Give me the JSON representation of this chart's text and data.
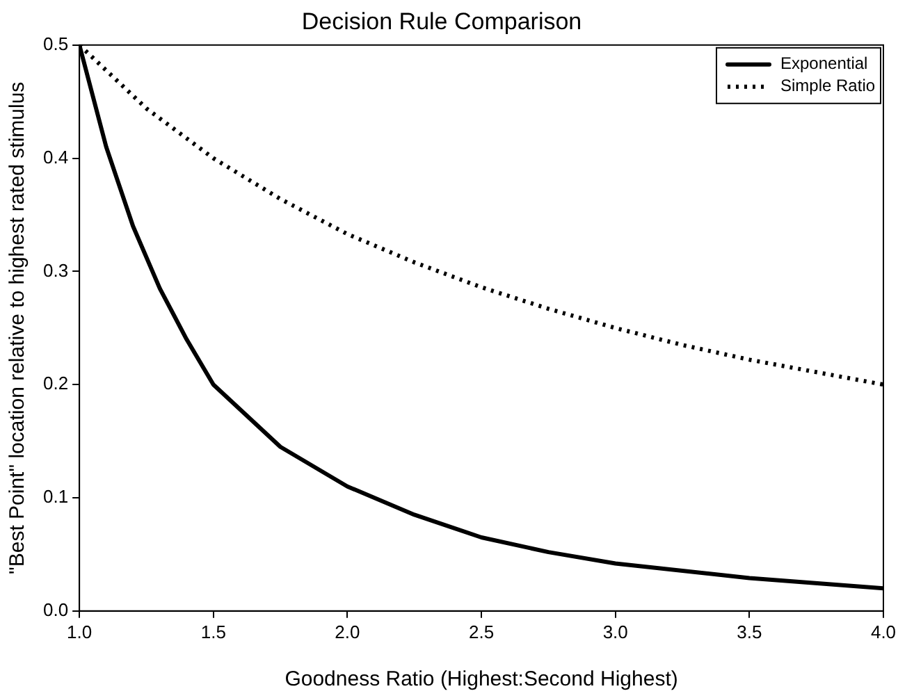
{
  "chart_data": {
    "type": "line",
    "title": "Decision Rule Comparison",
    "xlabel": "Goodness Ratio (Highest:Second Highest)",
    "ylabel": "\"Best Point\" location relative to highest rated stimulus",
    "xlim": [
      1,
      4
    ],
    "xticks": [
      {
        "value": 1,
        "label": "1.0"
      },
      {
        "value": 1.5,
        "label": "1.5"
      },
      {
        "value": 2,
        "label": "2.0"
      },
      {
        "value": 2.5,
        "label": "2.5"
      },
      {
        "value": 3,
        "label": "3.0"
      },
      {
        "value": 3.5,
        "label": "3.5"
      },
      {
        "value": 4,
        "label": "4.0"
      }
    ],
    "ylim": [
      0,
      0.5
    ],
    "yticks": [
      {
        "value": 0,
        "label": "0.0"
      },
      0.1,
      0.2,
      0.3,
      0.4,
      0.5
    ],
    "grid": false,
    "legend": "top right",
    "marker": "none",
    "series": [
      {
        "name": "Exponential",
        "color": "#000000",
        "line_style": "solid",
        "x": [
          1,
          1.1,
          1.2,
          1.3,
          1.4,
          1.5,
          1.75,
          2,
          2.25,
          2.5,
          2.75,
          3,
          3.5,
          4
        ],
        "values": [
          0.5,
          0.41,
          0.34,
          0.285,
          0.24,
          0.2,
          0.145,
          0.11,
          0.085,
          0.065,
          0.052,
          0.042,
          0.029,
          0.02
        ]
      },
      {
        "name": "Simple Ratio",
        "color": "#000000",
        "line_style": "dotted",
        "x": [
          1,
          1.25,
          1.5,
          1.75,
          2,
          2.25,
          2.5,
          2.75,
          3,
          3.25,
          3.5,
          3.75,
          4
        ],
        "values": [
          0.5,
          0.444,
          0.4,
          0.364,
          0.333,
          0.308,
          0.286,
          0.267,
          0.25,
          0.235,
          0.222,
          0.211,
          0.2
        ]
      }
    ]
  }
}
